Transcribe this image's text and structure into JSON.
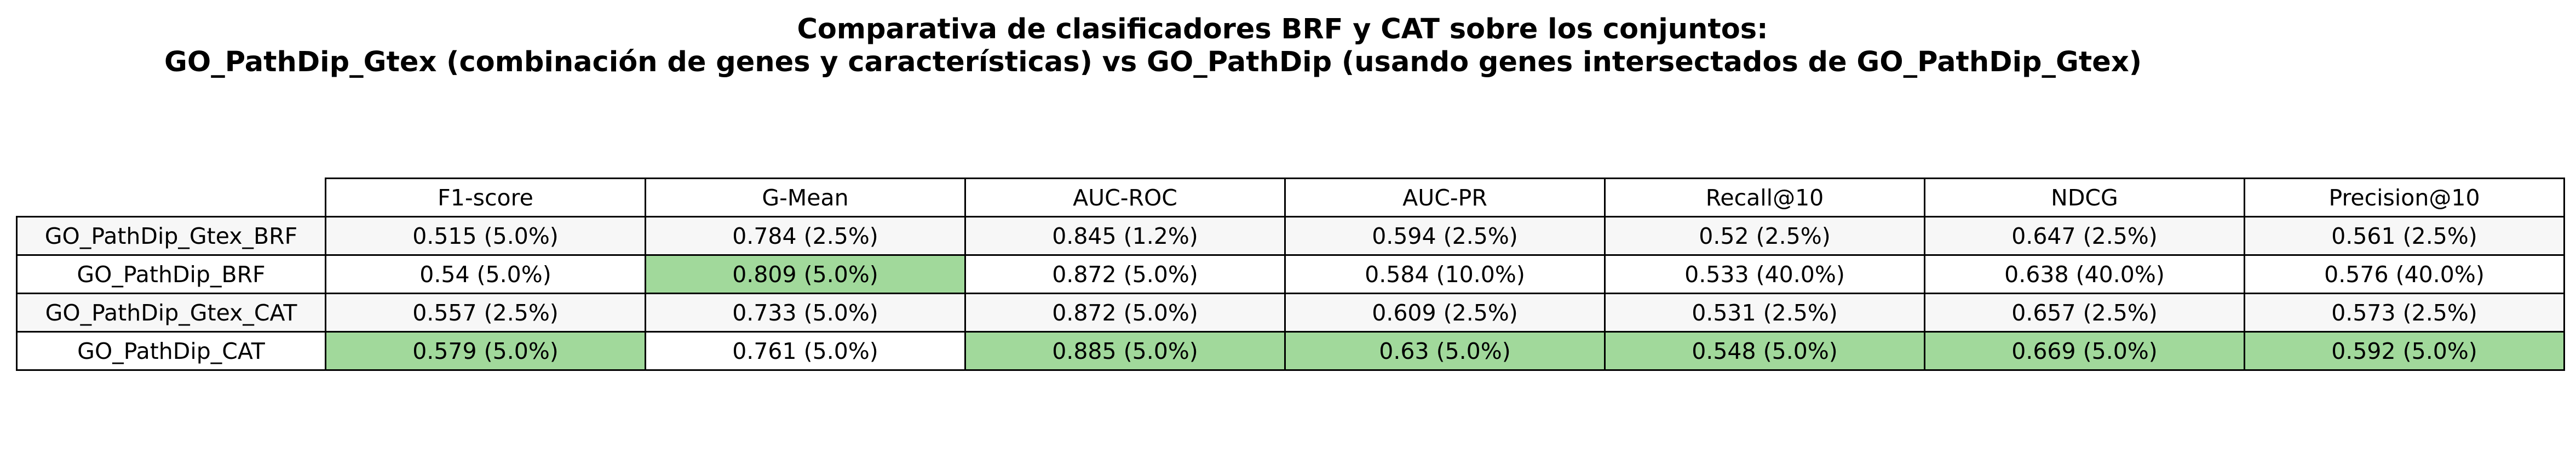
{
  "chart_data": {
    "type": "table",
    "title_lines": [
      "Comparativa de clasificadores BRF y CAT sobre los conjuntos:",
      "GO_PathDip_Gtex (combinación de genes y características) vs GO_PathDip (usando genes intersectados de GO_PathDip_Gtex)"
    ],
    "highlight_color": "#a1d99b",
    "columns": [
      "F1-score",
      "G-Mean",
      "AUC-ROC",
      "AUC-PR",
      "Recall@10",
      "NDCG",
      "Precision@10"
    ],
    "rows": [
      {
        "label": "GO_PathDip_Gtex_BRF",
        "cells": [
          {
            "text": "0.515 (5.0%)",
            "value": 0.515,
            "best": false
          },
          {
            "text": "0.784 (2.5%)",
            "value": 0.784,
            "best": false
          },
          {
            "text": "0.845 (1.2%)",
            "value": 0.845,
            "best": false
          },
          {
            "text": "0.594 (2.5%)",
            "value": 0.594,
            "best": false
          },
          {
            "text": "0.52 (2.5%)",
            "value": 0.52,
            "best": false
          },
          {
            "text": "0.647 (2.5%)",
            "value": 0.647,
            "best": false
          },
          {
            "text": "0.561 (2.5%)",
            "value": 0.561,
            "best": false
          }
        ]
      },
      {
        "label": "GO_PathDip_BRF",
        "cells": [
          {
            "text": "0.54 (5.0%)",
            "value": 0.54,
            "best": false
          },
          {
            "text": "0.809 (5.0%)",
            "value": 0.809,
            "best": true
          },
          {
            "text": "0.872 (5.0%)",
            "value": 0.872,
            "best": false
          },
          {
            "text": "0.584 (10.0%)",
            "value": 0.584,
            "best": false
          },
          {
            "text": "0.533 (40.0%)",
            "value": 0.533,
            "best": false
          },
          {
            "text": "0.638 (40.0%)",
            "value": 0.638,
            "best": false
          },
          {
            "text": "0.576 (40.0%)",
            "value": 0.576,
            "best": false
          }
        ]
      },
      {
        "label": "GO_PathDip_Gtex_CAT",
        "cells": [
          {
            "text": "0.557 (2.5%)",
            "value": 0.557,
            "best": false
          },
          {
            "text": "0.733 (5.0%)",
            "value": 0.733,
            "best": false
          },
          {
            "text": "0.872 (5.0%)",
            "value": 0.872,
            "best": false
          },
          {
            "text": "0.609 (2.5%)",
            "value": 0.609,
            "best": false
          },
          {
            "text": "0.531 (2.5%)",
            "value": 0.531,
            "best": false
          },
          {
            "text": "0.657 (2.5%)",
            "value": 0.657,
            "best": false
          },
          {
            "text": "0.573 (2.5%)",
            "value": 0.573,
            "best": false
          }
        ]
      },
      {
        "label": "GO_PathDip_CAT",
        "cells": [
          {
            "text": "0.579 (5.0%)",
            "value": 0.579,
            "best": true
          },
          {
            "text": "0.761 (5.0%)",
            "value": 0.761,
            "best": false
          },
          {
            "text": "0.885 (5.0%)",
            "value": 0.885,
            "best": true
          },
          {
            "text": "0.63 (5.0%)",
            "value": 0.63,
            "best": true
          },
          {
            "text": "0.548 (5.0%)",
            "value": 0.548,
            "best": true
          },
          {
            "text": "0.669 (5.0%)",
            "value": 0.669,
            "best": true
          },
          {
            "text": "0.592 (5.0%)",
            "value": 0.592,
            "best": true
          }
        ]
      }
    ]
  }
}
